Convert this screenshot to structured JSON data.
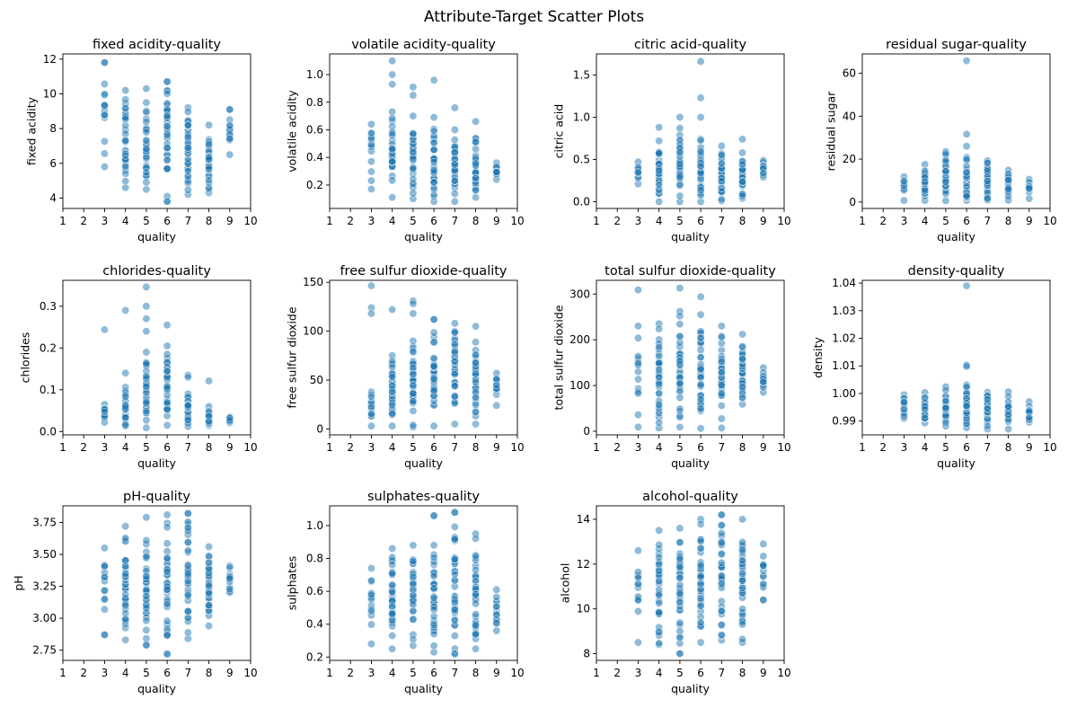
{
  "figure": {
    "title": "Attribute-Target Scatter Plots"
  },
  "chart_data": [
    {
      "type": "scatter",
      "title": "fixed acidity-quality",
      "xlabel": "quality",
      "ylabel": "fixed acidity",
      "xlim": [
        1,
        10
      ],
      "ylim": [
        3.4,
        12.3
      ],
      "xticks": [
        1,
        2,
        3,
        4,
        5,
        6,
        7,
        8,
        9,
        10
      ],
      "yticks": [
        4,
        6,
        8,
        10,
        12
      ],
      "ranges": {
        "3": [
          5.8,
          11.8
        ],
        "4": [
          4.6,
          10.2
        ],
        "5": [
          4.5,
          10.3
        ],
        "6": [
          3.8,
          10.7
        ],
        "7": [
          4.2,
          9.2
        ],
        "8": [
          4.3,
          8.2
        ],
        "9": [
          6.5,
          9.1
        ]
      },
      "outliers": [
        [
          3,
          11.8
        ],
        [
          6,
          10.7
        ],
        [
          6,
          3.8
        ],
        [
          9,
          9.1
        ]
      ]
    },
    {
      "type": "scatter",
      "title": "volatile acidity-quality",
      "xlabel": "quality",
      "ylabel": "volatile acidity",
      "xlim": [
        1,
        10
      ],
      "ylim": [
        0.03,
        1.15
      ],
      "xticks": [
        1,
        2,
        3,
        4,
        5,
        6,
        7,
        8,
        9,
        10
      ],
      "yticks": [
        0.2,
        0.4,
        0.6,
        0.8,
        1.0
      ],
      "ranges": {
        "3": [
          0.17,
          0.64
        ],
        "4": [
          0.11,
          0.73
        ],
        "5": [
          0.1,
          0.7
        ],
        "6": [
          0.08,
          0.69
        ],
        "7": [
          0.08,
          0.6
        ],
        "8": [
          0.11,
          0.54
        ],
        "9": [
          0.24,
          0.36
        ]
      },
      "outliers": [
        [
          4,
          1.1
        ],
        [
          4,
          1.0
        ],
        [
          4,
          0.93
        ],
        [
          5,
          0.91
        ],
        [
          5,
          0.85
        ],
        [
          6,
          0.96
        ],
        [
          7,
          0.76
        ],
        [
          8,
          0.66
        ]
      ]
    },
    {
      "type": "scatter",
      "title": "citric acid-quality",
      "xlabel": "quality",
      "ylabel": "citric acid",
      "xlim": [
        1,
        10
      ],
      "ylim": [
        -0.08,
        1.75
      ],
      "xticks": [
        1,
        2,
        3,
        4,
        5,
        6,
        7,
        8,
        9,
        10
      ],
      "yticks": [
        0.0,
        0.5,
        1.0,
        1.5
      ],
      "ranges": {
        "3": [
          0.21,
          0.47
        ],
        "4": [
          0.0,
          0.72
        ],
        "5": [
          0.0,
          0.79
        ],
        "6": [
          0.0,
          0.74
        ],
        "7": [
          0.01,
          0.66
        ],
        "8": [
          0.04,
          0.58
        ],
        "9": [
          0.29,
          0.49
        ]
      },
      "outliers": [
        [
          4,
          0.88
        ],
        [
          5,
          1.0
        ],
        [
          5,
          0.87
        ],
        [
          6,
          1.66
        ],
        [
          6,
          1.23
        ],
        [
          6,
          1.0
        ],
        [
          8,
          0.74
        ]
      ]
    },
    {
      "type": "scatter",
      "title": "residual sugar-quality",
      "xlabel": "quality",
      "ylabel": "residual sugar",
      "xlim": [
        1,
        10
      ],
      "ylim": [
        -3,
        69
      ],
      "xticks": [
        1,
        2,
        3,
        4,
        5,
        6,
        7,
        8,
        9,
        10
      ],
      "yticks": [
        0,
        20,
        40,
        60
      ],
      "ranges": {
        "3": [
          0.7,
          11.8
        ],
        "4": [
          0.7,
          17.5
        ],
        "5": [
          0.6,
          23.5
        ],
        "6": [
          0.7,
          20.8
        ],
        "7": [
          0.9,
          19.3
        ],
        "8": [
          0.8,
          14.8
        ],
        "9": [
          1.6,
          10.6
        ]
      },
      "outliers": [
        [
          6,
          65.8
        ],
        [
          6,
          31.6
        ],
        [
          6,
          26.0
        ],
        [
          5,
          22.6
        ]
      ]
    },
    {
      "type": "scatter",
      "title": "chlorides-quality",
      "xlabel": "quality",
      "ylabel": "chlorides",
      "xlim": [
        1,
        10
      ],
      "ylim": [
        -0.008,
        0.362
      ],
      "xticks": [
        1,
        2,
        3,
        4,
        5,
        6,
        7,
        8,
        9,
        10
      ],
      "yticks": [
        0.0,
        0.1,
        0.2,
        0.3
      ],
      "ranges": {
        "3": [
          0.022,
          0.065
        ],
        "4": [
          0.013,
          0.106
        ],
        "5": [
          0.009,
          0.19
        ],
        "6": [
          0.015,
          0.205
        ],
        "7": [
          0.012,
          0.09
        ],
        "8": [
          0.014,
          0.06
        ],
        "9": [
          0.021,
          0.035
        ]
      },
      "outliers": [
        [
          3,
          0.244
        ],
        [
          4,
          0.29
        ],
        [
          4,
          0.14
        ],
        [
          5,
          0.346
        ],
        [
          5,
          0.3
        ],
        [
          5,
          0.27
        ],
        [
          5,
          0.24
        ],
        [
          6,
          0.255
        ],
        [
          7,
          0.135
        ],
        [
          7,
          0.13
        ],
        [
          8,
          0.121
        ]
      ]
    },
    {
      "type": "scatter",
      "title": "free sulfur dioxide-quality",
      "xlabel": "quality",
      "ylabel": "free sulfur dioxide",
      "xlim": [
        1,
        10
      ],
      "ylim": [
        -6,
        152
      ],
      "xticks": [
        1,
        2,
        3,
        4,
        5,
        6,
        7,
        8,
        9,
        10
      ],
      "yticks": [
        0,
        50,
        100,
        150
      ],
      "ranges": {
        "3": [
          3,
          38
        ],
        "4": [
          3,
          75
        ],
        "5": [
          2,
          90
        ],
        "6": [
          3,
          112
        ],
        "7": [
          5,
          108
        ],
        "8": [
          5,
          105
        ],
        "9": [
          24,
          57
        ]
      },
      "outliers": [
        [
          3,
          146.5
        ],
        [
          3,
          124
        ],
        [
          3,
          118
        ],
        [
          4,
          122
        ],
        [
          5,
          131
        ],
        [
          5,
          128
        ],
        [
          5,
          118
        ],
        [
          6,
          112
        ]
      ]
    },
    {
      "type": "scatter",
      "title": "total sulfur dioxide-quality",
      "xlabel": "quality",
      "ylabel": "total sulfur dioxide",
      "xlim": [
        1,
        10
      ],
      "ylim": [
        -8,
        330
      ],
      "xticks": [
        1,
        2,
        3,
        4,
        5,
        6,
        7,
        8,
        9,
        10
      ],
      "yticks": [
        0,
        100,
        200,
        300
      ],
      "ranges": {
        "3": [
          9,
          230
        ],
        "4": [
          7,
          235
        ],
        "5": [
          9,
          262
        ],
        "6": [
          6,
          255
        ],
        "7": [
          7,
          230
        ],
        "8": [
          59,
          212
        ],
        "9": [
          85,
          139
        ]
      },
      "outliers": [
        [
          3,
          309
        ],
        [
          5,
          313
        ],
        [
          6,
          294
        ]
      ]
    },
    {
      "type": "scatter",
      "title": "density-quality",
      "xlabel": "quality",
      "ylabel": "density",
      "xlim": [
        1,
        10
      ],
      "ylim": [
        0.985,
        1.041
      ],
      "xticks": [
        1,
        2,
        3,
        4,
        5,
        6,
        7,
        8,
        9,
        10
      ],
      "yticks": [
        0.99,
        1.0,
        1.01,
        1.02,
        1.03,
        1.04
      ],
      "ranges": {
        "3": [
          0.991,
          0.9995
        ],
        "4": [
          0.9893,
          1.0003
        ],
        "5": [
          0.9882,
          1.0024
        ],
        "6": [
          0.9876,
          1.0031
        ],
        "7": [
          0.9871,
          1.0004
        ],
        "8": [
          0.9871,
          1.0006
        ],
        "9": [
          0.9896,
          0.997
        ]
      },
      "outliers": [
        [
          6,
          1.039
        ],
        [
          6,
          1.0103
        ],
        [
          6,
          1.0098
        ]
      ]
    },
    {
      "type": "scatter",
      "title": "pH-quality",
      "xlabel": "quality",
      "ylabel": "pH",
      "xlim": [
        1,
        10
      ],
      "ylim": [
        2.67,
        3.88
      ],
      "xticks": [
        1,
        2,
        3,
        4,
        5,
        6,
        7,
        8,
        9,
        10
      ],
      "yticks": [
        2.75,
        3.0,
        3.25,
        3.5,
        3.75
      ],
      "ranges": {
        "3": [
          2.87,
          3.55
        ],
        "4": [
          2.83,
          3.72
        ],
        "5": [
          2.79,
          3.79
        ],
        "6": [
          2.72,
          3.81
        ],
        "7": [
          2.84,
          3.82
        ],
        "8": [
          2.94,
          3.56
        ],
        "9": [
          3.2,
          3.41
        ]
      },
      "outliers": [
        [
          3,
          2.87
        ],
        [
          5,
          2.79
        ],
        [
          6,
          2.72
        ],
        [
          7,
          3.82
        ]
      ]
    },
    {
      "type": "scatter",
      "title": "sulphates-quality",
      "xlabel": "quality",
      "ylabel": "sulphates",
      "xlim": [
        1,
        10
      ],
      "ylim": [
        0.18,
        1.12
      ],
      "xticks": [
        1,
        2,
        3,
        4,
        5,
        6,
        7,
        8,
        9,
        10
      ],
      "yticks": [
        0.2,
        0.4,
        0.6,
        0.8,
        1.0
      ],
      "ranges": {
        "3": [
          0.28,
          0.74
        ],
        "4": [
          0.25,
          0.86
        ],
        "5": [
          0.27,
          0.88
        ],
        "6": [
          0.23,
          1.06
        ],
        "7": [
          0.22,
          1.08
        ],
        "8": [
          0.25,
          0.95
        ],
        "9": [
          0.36,
          0.61
        ]
      },
      "outliers": [
        [
          6,
          1.06
        ],
        [
          7,
          1.08
        ],
        [
          7,
          0.22
        ]
      ]
    },
    {
      "type": "scatter",
      "title": "alcohol-quality",
      "xlabel": "quality",
      "ylabel": "alcohol",
      "xlim": [
        1,
        10
      ],
      "ylim": [
        7.7,
        14.6
      ],
      "xticks": [
        1,
        2,
        3,
        4,
        5,
        6,
        7,
        8,
        9,
        10
      ],
      "yticks": [
        8,
        10,
        12,
        14
      ],
      "ranges": {
        "3": [
          8.5,
          12.6
        ],
        "4": [
          8.4,
          13.5
        ],
        "5": [
          8.0,
          13.6
        ],
        "6": [
          8.5,
          14.0
        ],
        "7": [
          8.6,
          14.2
        ],
        "8": [
          8.5,
          14.0
        ],
        "9": [
          10.4,
          12.9
        ]
      },
      "outliers": [
        [
          5,
          8.0
        ],
        [
          7,
          14.2
        ],
        [
          9,
          10.4
        ]
      ]
    }
  ]
}
